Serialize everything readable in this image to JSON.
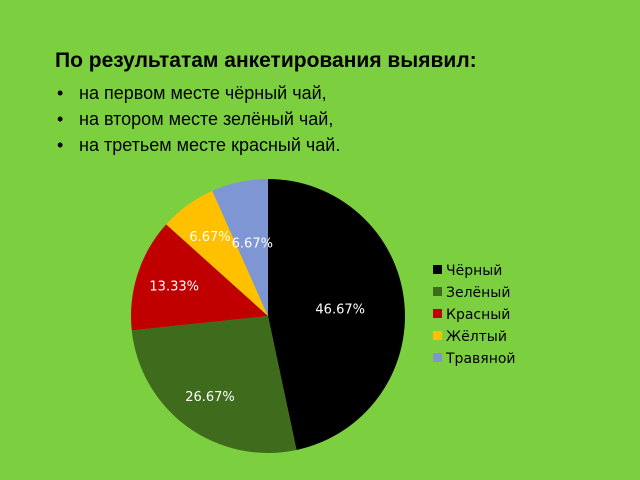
{
  "slide": {
    "heading": "По результатам анкетирования выявил:",
    "bullets": [
      "на первом  месте чёрный чай,",
      "на втором месте зелёный чай,",
      "на третьем месте красный чай."
    ]
  },
  "chart_data": {
    "type": "pie",
    "title": "",
    "legend_position": "right",
    "start_angle": "12 o'clock, clockwise",
    "slices": [
      {
        "name": "Чёрный",
        "value": 46.67,
        "label": "46.67%",
        "color": "#000000"
      },
      {
        "name": "Зелёный",
        "value": 26.67,
        "label": "26.67%",
        "color": "#3f6b1c"
      },
      {
        "name": "Красный",
        "value": 13.33,
        "label": "13.33%",
        "color": "#c00000"
      },
      {
        "name": "Жёлтый",
        "value": 6.67,
        "label": "6.67%",
        "color": "#ffc000"
      },
      {
        "name": "Травяной",
        "value": 6.67,
        "label": "6.67%",
        "color": "#7f96d4"
      }
    ]
  }
}
